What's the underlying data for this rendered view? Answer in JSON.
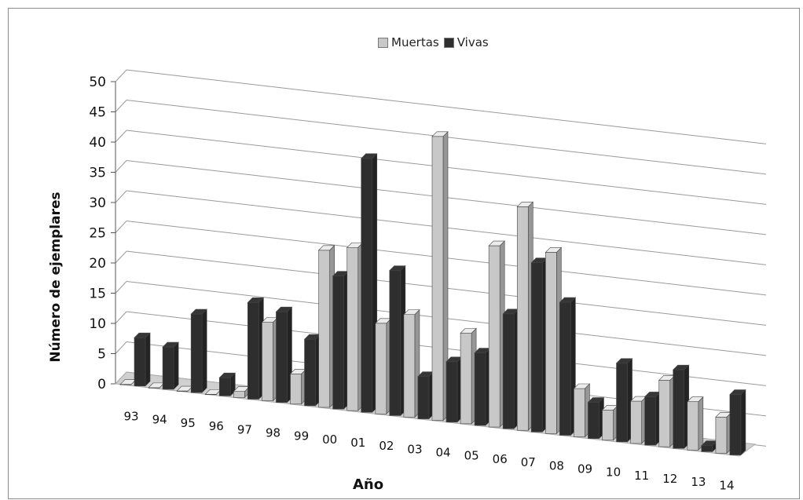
{
  "chart_data": {
    "type": "bar",
    "xlabel": "Año",
    "ylabel": "Número de ejemplares",
    "ylim": [
      0,
      50
    ],
    "yticks": [
      0,
      5,
      10,
      15,
      20,
      25,
      30,
      35,
      40,
      45,
      50
    ],
    "grid": true,
    "legend_position": "top-center",
    "categories": [
      "93",
      "94",
      "95",
      "96",
      "97",
      "98",
      "99",
      "00",
      "01",
      "02",
      "03",
      "04",
      "05",
      "06",
      "07",
      "08",
      "09",
      "10",
      "11",
      "12",
      "13",
      "14"
    ],
    "series": [
      {
        "name": "Muertas",
        "color": "#c8c8c8",
        "values": [
          0,
          0,
          0,
          0,
          1,
          13,
          5,
          26,
          27,
          15,
          17,
          47,
          15,
          30,
          37,
          30,
          8,
          5,
          7,
          11,
          8,
          6
        ]
      },
      {
        "name": "Vivas",
        "color": "#2e2e2e",
        "values": [
          8,
          7,
          13,
          3,
          16,
          15,
          11,
          22,
          42,
          24,
          7,
          10,
          12,
          19,
          28,
          22,
          6,
          13,
          8,
          13,
          1,
          10
        ]
      }
    ]
  }
}
